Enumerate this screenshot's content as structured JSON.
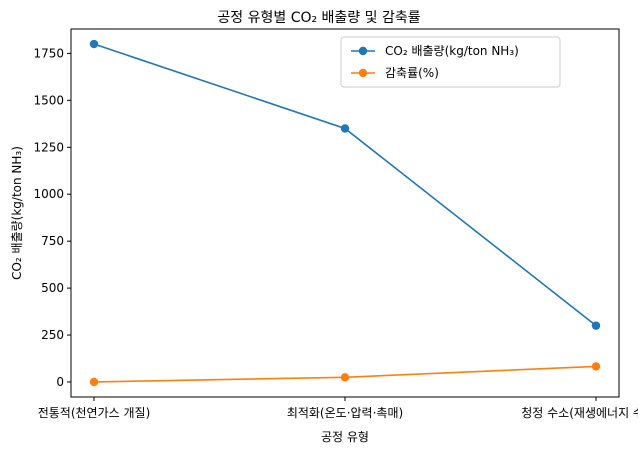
{
  "chart_data": {
    "type": "line",
    "title": "공정 유형별 CO₂ 배출량 및 감축률",
    "xlabel": "공정 유형",
    "ylabel": "CO₂ 배출량(kg/ton NH₃)",
    "categories": [
      "전통적(천연가스 개질)",
      "최적화(온도·압력·촉매)",
      "청정 수소(재생에너지 수전해)"
    ],
    "ylim": [
      -80,
      1880
    ],
    "yticks": [
      0,
      250,
      500,
      750,
      1000,
      1250,
      1500,
      1750
    ],
    "grid": false,
    "legend_position": "top-right",
    "series": [
      {
        "name": "CO₂ 배출량(kg/ton NH₃)",
        "values": [
          1800,
          1350,
          300
        ],
        "color": "#1f77b4"
      },
      {
        "name": "감축률(%)",
        "values": [
          0,
          25,
          83
        ],
        "color": "#ff7f0e"
      }
    ]
  }
}
